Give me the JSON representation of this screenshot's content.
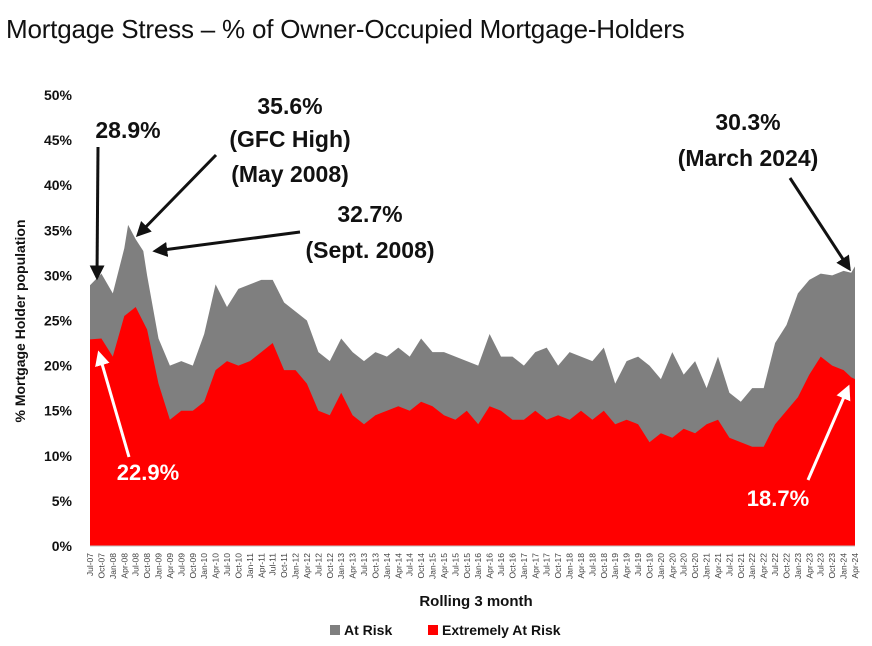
{
  "title": "Mortgage Stress – % of Owner-Occupied Mortgage-Holders",
  "chart_data": {
    "type": "area",
    "title": "Mortgage Stress – % of Owner-Occupied Mortgage-Holders",
    "xlabel": "Rolling 3 month",
    "ylabel": "% Mortgage Holder population",
    "ylim": [
      0,
      50
    ],
    "yticks": [
      "0%",
      "5%",
      "10%",
      "15%",
      "20%",
      "25%",
      "30%",
      "35%",
      "40%",
      "45%",
      "50%"
    ],
    "grid": false,
    "legend_position": "bottom",
    "x_start": "Jul-07",
    "x_tick_labels": [
      "Jul-07",
      "Oct-07",
      "Jan-08",
      "Apr-08",
      "Jul-08",
      "Oct-08",
      "Jan-09",
      "Apr-09",
      "Jul-09",
      "Oct-09",
      "Jan-10",
      "Apr-10",
      "Jul-10",
      "Oct-10",
      "Jan-11",
      "Apr-11",
      "Jul-11",
      "Oct-11",
      "Jan-12",
      "Apr-12",
      "Jul-12",
      "Oct-12",
      "Jan-13",
      "Apr-13",
      "Jul-13",
      "Oct-13",
      "Jan-14",
      "Apr-14",
      "Jul-14",
      "Oct-14",
      "Jan-15",
      "Apr-15",
      "Jul-15",
      "Oct-15",
      "Jan-16",
      "Apr-16",
      "Jul-16",
      "Oct-16",
      "Jan-17",
      "Apr-17",
      "Jul-17",
      "Oct-17",
      "Jan-18",
      "Apr-18",
      "Jul-18",
      "Oct-18",
      "Jan-19",
      "Apr-19",
      "Jul-19",
      "Oct-19",
      "Jan-20",
      "Apr-20",
      "Jul-20",
      "Oct-20",
      "Jan-21",
      "Apr-21",
      "Jul-21",
      "Oct-21",
      "Jan-22",
      "Apr-22",
      "Jul-22",
      "Oct-22",
      "Jan-23",
      "Apr-23",
      "Jul-23",
      "Oct-23",
      "Jan-24",
      "Apr-24"
    ],
    "series": [
      {
        "name": "At Risk",
        "color": "#7f7f7f",
        "points": [
          [
            "Jul-07",
            28.9
          ],
          [
            "Oct-07",
            30.2
          ],
          [
            "Jan-08",
            28.0
          ],
          [
            "Apr-08",
            33.0
          ],
          [
            "May-08",
            35.6
          ],
          [
            "Jul-08",
            34.0
          ],
          [
            "Sep-08",
            32.7
          ],
          [
            "Oct-08",
            30.0
          ],
          [
            "Jan-09",
            23.0
          ],
          [
            "Apr-09",
            20.0
          ],
          [
            "Jul-09",
            20.5
          ],
          [
            "Oct-09",
            20.0
          ],
          [
            "Jan-10",
            23.5
          ],
          [
            "Apr-10",
            29.0
          ],
          [
            "Jul-10",
            26.5
          ],
          [
            "Oct-10",
            28.5
          ],
          [
            "Jan-11",
            29.0
          ],
          [
            "Apr-11",
            29.5
          ],
          [
            "Jul-11",
            29.5
          ],
          [
            "Oct-11",
            27.0
          ],
          [
            "Jan-12",
            26.0
          ],
          [
            "Apr-12",
            25.0
          ],
          [
            "Jul-12",
            21.5
          ],
          [
            "Oct-12",
            20.5
          ],
          [
            "Jan-13",
            23.0
          ],
          [
            "Apr-13",
            21.5
          ],
          [
            "Jul-13",
            20.5
          ],
          [
            "Oct-13",
            21.5
          ],
          [
            "Jan-14",
            21.0
          ],
          [
            "Apr-14",
            22.0
          ],
          [
            "Jul-14",
            21.0
          ],
          [
            "Oct-14",
            23.0
          ],
          [
            "Jan-15",
            21.5
          ],
          [
            "Apr-15",
            21.5
          ],
          [
            "Jul-15",
            21.0
          ],
          [
            "Oct-15",
            20.5
          ],
          [
            "Jan-16",
            20.0
          ],
          [
            "Apr-16",
            23.5
          ],
          [
            "Jul-16",
            21.0
          ],
          [
            "Oct-16",
            21.0
          ],
          [
            "Jan-17",
            20.0
          ],
          [
            "Apr-17",
            21.5
          ],
          [
            "Jul-17",
            22.0
          ],
          [
            "Oct-17",
            20.0
          ],
          [
            "Jan-18",
            21.5
          ],
          [
            "Apr-18",
            21.0
          ],
          [
            "Jul-18",
            20.5
          ],
          [
            "Oct-18",
            22.0
          ],
          [
            "Jan-19",
            18.0
          ],
          [
            "Apr-19",
            20.5
          ],
          [
            "Jul-19",
            21.0
          ],
          [
            "Oct-19",
            20.0
          ],
          [
            "Jan-20",
            18.5
          ],
          [
            "Apr-20",
            21.5
          ],
          [
            "Jul-20",
            19.0
          ],
          [
            "Oct-20",
            20.5
          ],
          [
            "Jan-21",
            17.5
          ],
          [
            "Apr-21",
            21.0
          ],
          [
            "Jul-21",
            17.0
          ],
          [
            "Oct-21",
            16.0
          ],
          [
            "Jan-22",
            17.5
          ],
          [
            "Apr-22",
            17.5
          ],
          [
            "Jul-22",
            22.5
          ],
          [
            "Oct-22",
            24.5
          ],
          [
            "Jan-23",
            28.0
          ],
          [
            "Apr-23",
            29.5
          ],
          [
            "Jul-23",
            30.2
          ],
          [
            "Oct-23",
            30.0
          ],
          [
            "Jan-24",
            30.5
          ],
          [
            "Mar-24",
            30.3
          ],
          [
            "Apr-24",
            31.0
          ]
        ]
      },
      {
        "name": "Extremely At Risk",
        "color": "#ff0000",
        "points": [
          [
            "Jul-07",
            22.9
          ],
          [
            "Oct-07",
            23.0
          ],
          [
            "Jan-08",
            21.0
          ],
          [
            "Apr-08",
            25.5
          ],
          [
            "Jul-08",
            26.5
          ],
          [
            "Oct-08",
            24.0
          ],
          [
            "Jan-09",
            18.0
          ],
          [
            "Apr-09",
            14.0
          ],
          [
            "Jul-09",
            15.0
          ],
          [
            "Oct-09",
            15.0
          ],
          [
            "Jan-10",
            16.0
          ],
          [
            "Apr-10",
            19.5
          ],
          [
            "Jul-10",
            20.5
          ],
          [
            "Oct-10",
            20.0
          ],
          [
            "Jan-11",
            20.5
          ],
          [
            "Apr-11",
            21.5
          ],
          [
            "Jul-11",
            22.5
          ],
          [
            "Oct-11",
            19.5
          ],
          [
            "Jan-12",
            19.5
          ],
          [
            "Apr-12",
            18.0
          ],
          [
            "Jul-12",
            15.0
          ],
          [
            "Oct-12",
            14.5
          ],
          [
            "Jan-13",
            17.0
          ],
          [
            "Apr-13",
            14.5
          ],
          [
            "Jul-13",
            13.5
          ],
          [
            "Oct-13",
            14.5
          ],
          [
            "Jan-14",
            15.0
          ],
          [
            "Apr-14",
            15.5
          ],
          [
            "Jul-14",
            15.0
          ],
          [
            "Oct-14",
            16.0
          ],
          [
            "Jan-15",
            15.5
          ],
          [
            "Apr-15",
            14.5
          ],
          [
            "Jul-15",
            14.0
          ],
          [
            "Oct-15",
            15.0
          ],
          [
            "Jan-16",
            13.5
          ],
          [
            "Apr-16",
            15.5
          ],
          [
            "Jul-16",
            15.0
          ],
          [
            "Oct-16",
            14.0
          ],
          [
            "Jan-17",
            14.0
          ],
          [
            "Apr-17",
            15.0
          ],
          [
            "Jul-17",
            14.0
          ],
          [
            "Oct-17",
            14.5
          ],
          [
            "Jan-18",
            14.0
          ],
          [
            "Apr-18",
            15.0
          ],
          [
            "Jul-18",
            14.0
          ],
          [
            "Oct-18",
            15.0
          ],
          [
            "Jan-19",
            13.5
          ],
          [
            "Apr-19",
            14.0
          ],
          [
            "Jul-19",
            13.5
          ],
          [
            "Oct-19",
            11.5
          ],
          [
            "Jan-20",
            12.5
          ],
          [
            "Apr-20",
            12.0
          ],
          [
            "Jul-20",
            13.0
          ],
          [
            "Oct-20",
            12.5
          ],
          [
            "Jan-21",
            13.5
          ],
          [
            "Apr-21",
            14.0
          ],
          [
            "Jul-21",
            12.0
          ],
          [
            "Oct-21",
            11.5
          ],
          [
            "Jan-22",
            11.0
          ],
          [
            "Apr-22",
            11.0
          ],
          [
            "Jul-22",
            13.5
          ],
          [
            "Oct-22",
            15.0
          ],
          [
            "Jan-23",
            16.5
          ],
          [
            "Apr-23",
            19.0
          ],
          [
            "Jul-23",
            21.0
          ],
          [
            "Oct-23",
            20.0
          ],
          [
            "Jan-24",
            19.5
          ],
          [
            "Mar-24",
            18.7
          ],
          [
            "Apr-24",
            18.5
          ]
        ]
      }
    ],
    "annotations": [
      {
        "text": "28.9%",
        "at": [
          "Jul-07",
          28.9
        ]
      },
      {
        "text": "35.6%",
        "at": [
          "May-08",
          35.6
        ]
      },
      {
        "text": "(GFC High)",
        "at": [
          "May-08",
          35.6
        ]
      },
      {
        "text": "(May 2008)",
        "at": [
          "May-08",
          35.6
        ]
      },
      {
        "text": "32.7%",
        "at": [
          "Sep-08",
          32.7
        ]
      },
      {
        "text": "(Sept. 2008)",
        "at": [
          "Sep-08",
          32.7
        ]
      },
      {
        "text": "30.3%",
        "at": [
          "Mar-24",
          30.3
        ]
      },
      {
        "text": "(March 2024)",
        "at": [
          "Mar-24",
          30.3
        ]
      },
      {
        "text": "22.9%",
        "at": [
          "Jul-07",
          22.9
        ]
      },
      {
        "text": "18.7%",
        "at": [
          "Mar-24",
          18.7
        ]
      }
    ]
  }
}
